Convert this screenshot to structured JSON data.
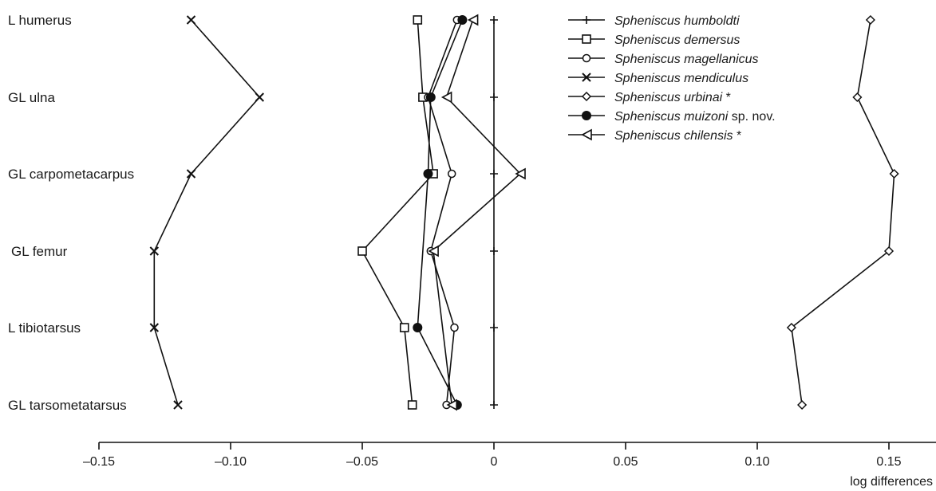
{
  "chart_data": {
    "type": "line",
    "orientation": "horizontal-profile",
    "categories": [
      "L humerus",
      "GL ulna",
      "GL carpometacarpus",
      "GL femur",
      "L tibiotarsus",
      "GL  tarsometatarsus"
    ],
    "xlabel": "log differences",
    "xlim": [
      -0.15,
      0.17
    ],
    "xticks": [
      -0.15,
      -0.1,
      -0.05,
      0,
      0.05,
      0.1,
      0.15
    ],
    "xtick_labels": [
      "–0.15",
      "–0.10",
      "–0.05",
      "0",
      "0.05",
      "0.10",
      "0.15"
    ],
    "grid": false,
    "legend_position": "top-right",
    "series": [
      {
        "name": "Spheniscus humboldti",
        "name_suffix": "",
        "marker": "plus",
        "values": [
          0,
          0,
          0,
          0,
          0,
          0
        ]
      },
      {
        "name": "Spheniscus demersus",
        "name_suffix": "",
        "marker": "square",
        "values": [
          -0.029,
          -0.027,
          -0.023,
          -0.05,
          -0.034,
          -0.031
        ]
      },
      {
        "name": "Spheniscus magellanicus",
        "name_suffix": "",
        "marker": "circle-open",
        "values": [
          -0.014,
          -0.025,
          -0.016,
          -0.024,
          -0.015,
          -0.018
        ]
      },
      {
        "name": "Spheniscus mendiculus",
        "name_suffix": "",
        "marker": "x",
        "values": [
          -0.115,
          -0.089,
          -0.115,
          -0.129,
          -0.129,
          -0.12
        ]
      },
      {
        "name": "Spheniscus urbinai",
        "name_suffix": " *",
        "marker": "diamond",
        "values": [
          0.143,
          0.138,
          0.152,
          0.15,
          0.113,
          0.117
        ]
      },
      {
        "name": "Spheniscus muizoni",
        "name_suffix": " sp. nov.",
        "marker": "circle-filled",
        "values": [
          -0.012,
          -0.024,
          -0.025,
          null,
          -0.029,
          -0.014
        ]
      },
      {
        "name": "Spheniscus chilensis",
        "name_suffix": " *",
        "marker": "triangle",
        "values": [
          -0.008,
          -0.018,
          0.01,
          -0.023,
          null,
          -0.016
        ]
      }
    ]
  }
}
